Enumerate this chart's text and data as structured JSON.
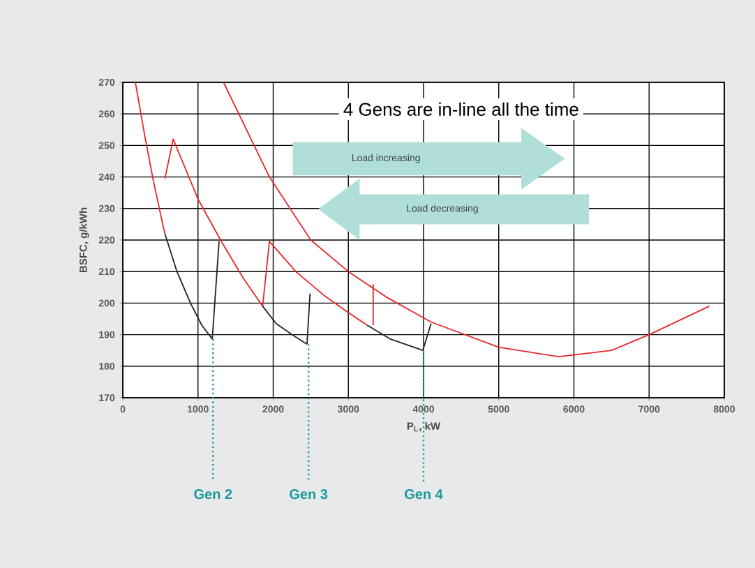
{
  "chart_data": {
    "type": "line",
    "xlabel": "P$_{L}$, kW",
    "ylabel": "BSFC, g/kWh",
    "xlim": [
      0,
      8000
    ],
    "xticks": [
      0,
      1000,
      2000,
      3000,
      4000,
      5000,
      6000,
      7000,
      8000
    ],
    "ylim": [
      170,
      270
    ],
    "yticks": [
      170,
      180,
      190,
      200,
      210,
      220,
      230,
      240,
      250,
      260,
      270
    ],
    "grid": true,
    "marker": "none",
    "line_style": "solid",
    "series": [
      {
        "color": "#e8262b",
        "x": [
          167,
          300,
          408,
          540,
          560
        ],
        "values": [
          270,
          252,
          238.6,
          224,
          222
        ]
      },
      {
        "color": "#222222",
        "x": [
          560,
          720,
          900,
          1050,
          1190
        ],
        "values": [
          222,
          210,
          200,
          193,
          188.6
        ]
      },
      {
        "color": "#222222",
        "x": [
          1190,
          1280
        ],
        "values": [
          188.6,
          219.6
        ]
      },
      {
        "color": "#e8262b",
        "x": [
          560,
          670,
          1000,
          1300,
          1600,
          1860
        ],
        "values": [
          239.5,
          252,
          233,
          220,
          208,
          199
        ]
      },
      {
        "color": "#222222",
        "x": [
          1860,
          2040,
          2250,
          2450
        ],
        "values": [
          199,
          193.5,
          190,
          187
        ]
      },
      {
        "color": "#222222",
        "x": [
          2450,
          2490
        ],
        "values": [
          187,
          203
        ]
      },
      {
        "color": "#e8262b",
        "x": [
          1860,
          1950,
          2300,
          2700,
          3000,
          3250
        ],
        "values": [
          199,
          219.6,
          210,
          202,
          197,
          193
        ]
      },
      {
        "color": "#222222",
        "x": [
          3250,
          3560,
          3990
        ],
        "values": [
          193,
          188.6,
          185
        ]
      },
      {
        "color": "#222222",
        "x": [
          3990,
          4100
        ],
        "values": [
          185,
          193.5
        ]
      },
      {
        "color": "#e8262b",
        "x": [
          1340,
          1950,
          2500,
          3000,
          3500,
          4100,
          5000,
          5800,
          6500,
          7000,
          7800
        ],
        "values": [
          270,
          240,
          220,
          210,
          202,
          194,
          186,
          183,
          185,
          190,
          199
        ]
      },
      {
        "color": "#e8262b",
        "x": [
          3330,
          3330
        ],
        "values": [
          206,
          193
        ]
      }
    ],
    "ref_lines": [
      {
        "axis": "x",
        "value": 1200,
        "label": "Gen 2",
        "color": "#1a9a9a",
        "line_style": "dotted"
      },
      {
        "axis": "x",
        "value": 2470,
        "label": "Gen 3",
        "color": "#1a9a9a",
        "line_style": "dotted"
      },
      {
        "axis": "x",
        "value": 4000,
        "label": "Gen 4",
        "color": "#1a9a9a",
        "line_style": "dotted"
      }
    ],
    "annotations": [
      "4 Gens are in-line all the time",
      "Load increasing",
      "Load decreasing"
    ]
  }
}
